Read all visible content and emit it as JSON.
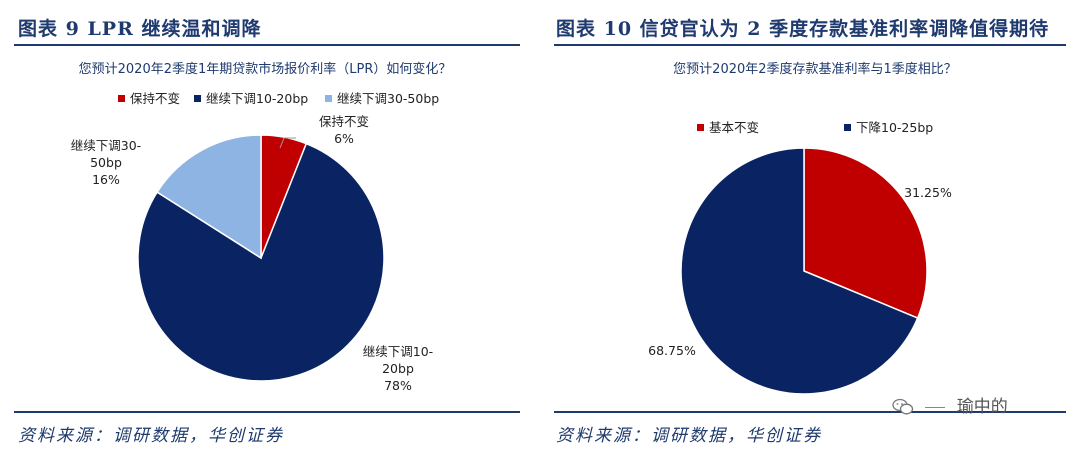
{
  "left": {
    "figure_title": "图表 9   LPR 继续温和调降",
    "source": "资料来源：调研数据，华创证券"
  },
  "right": {
    "figure_title": "图表 10   信贷官认为 2 季度存款基准利率调降值得期待",
    "source": "资料来源：调研数据，华创证券"
  },
  "watermark": {
    "text": "瑜中的",
    "icon": "wechat-icon"
  },
  "chart_data": [
    {
      "type": "pie",
      "title": "您预计2020年2季度1年期贷款市场报价利率（LPR）如何变化？",
      "legend_position": "top",
      "slices": [
        {
          "name": "保持不变",
          "value": 6,
          "color": "#c00000",
          "label_lines": [
            "保持不变",
            "6%"
          ]
        },
        {
          "name": "继续下调10-20bp",
          "value": 78,
          "color": "#0a2463",
          "label_lines": [
            "继续下调10-",
            "20bp",
            "78%"
          ]
        },
        {
          "name": "继续下调30-50bp",
          "value": 16,
          "color": "#8eb4e3",
          "label_lines": [
            "继续下调30-",
            "50bp",
            "16%"
          ]
        }
      ]
    },
    {
      "type": "pie",
      "title": "您预计2020年2季度存款基准利率与1季度相比？",
      "legend_position": "top",
      "slices": [
        {
          "name": "基本不变",
          "value": 31.25,
          "color": "#c00000",
          "label_lines": [
            "31.25%"
          ]
        },
        {
          "name": "下降10-25bp",
          "value": 68.75,
          "color": "#0a2463",
          "label_lines": [
            "68.75%"
          ]
        }
      ]
    }
  ]
}
